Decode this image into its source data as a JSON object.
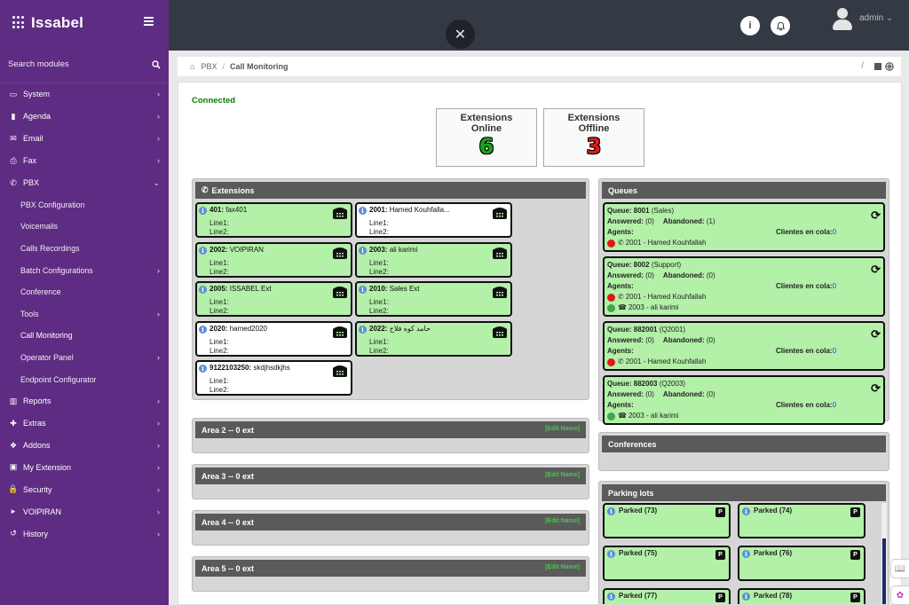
{
  "brand": {
    "name": "Issabel"
  },
  "sidebar": {
    "search_label": "Search modules",
    "items": [
      {
        "label": "System",
        "icon": "laptop-icon"
      },
      {
        "label": "Agenda",
        "icon": "book-icon"
      },
      {
        "label": "Email",
        "icon": "envelope-icon"
      },
      {
        "label": "Fax",
        "icon": "printer-icon"
      },
      {
        "label": "PBX",
        "icon": "phone-icon",
        "expanded": true
      }
    ],
    "pbx_sub": [
      {
        "label": "PBX Configuration",
        "chev": false
      },
      {
        "label": "Voicemails",
        "chev": false
      },
      {
        "label": "Calls Recordings",
        "chev": false
      },
      {
        "label": "Batch Configurations",
        "chev": true
      },
      {
        "label": "Conference",
        "chev": false
      },
      {
        "label": "Tools",
        "chev": true
      },
      {
        "label": "Call Monitoring",
        "chev": false,
        "active": true
      },
      {
        "label": "Operator Panel",
        "chev": true
      },
      {
        "label": "Endpoint Configurator",
        "chev": false
      }
    ],
    "items_after": [
      {
        "label": "Reports",
        "icon": "bar-chart-icon"
      },
      {
        "label": "Extras",
        "icon": "plus-icon"
      },
      {
        "label": "Addons",
        "icon": "cubes-icon"
      },
      {
        "label": "My Extension",
        "icon": "briefcase-icon"
      },
      {
        "label": "Security",
        "icon": "lock-icon"
      },
      {
        "label": "VOIPIRAN",
        "icon": "caret-right-icon"
      },
      {
        "label": "History",
        "icon": "history-icon"
      }
    ]
  },
  "topbar": {
    "user": "admin"
  },
  "breadcrumb": {
    "section": "PBX",
    "current": "Call Monitoring"
  },
  "status": "Connected",
  "stats": {
    "online_label_1": "Extensions",
    "online_label_2": "Online",
    "online_value": "6",
    "offline_label_1": "Extensions",
    "offline_label_2": "Offline",
    "offline_value": "3"
  },
  "extensions_panel": {
    "title": "Extensions",
    "line1": "Line1:",
    "line2": "Line2:",
    "cards": [
      {
        "num": "401:",
        "name": "fax401",
        "online": true
      },
      {
        "num": "2001:",
        "name": "Hamed Kouhfalla...",
        "online": false
      },
      {
        "num": "2002:",
        "name": "VOIPIRAN",
        "online": true
      },
      {
        "num": "2003:",
        "name": "ali karimi",
        "online": true
      },
      {
        "num": "2005:",
        "name": "ISSABEL Ext",
        "online": true
      },
      {
        "num": "2010:",
        "name": "Sales Ext",
        "online": true
      },
      {
        "num": "2020:",
        "name": "hamed2020",
        "online": false
      },
      {
        "num": "2022:",
        "name": "حامد کوه فلاح",
        "online": true
      },
      {
        "num": "9122103250:",
        "name": "skdjhsdkjhs",
        "online": false
      }
    ]
  },
  "areas": [
    {
      "title": "Area 2 -- 0 ext",
      "edit": "[Edit Name]"
    },
    {
      "title": "Area 3 -- 0 ext",
      "edit": "[Edit Name]"
    },
    {
      "title": "Area 4 -- 0 ext",
      "edit": "[Edit Name]"
    },
    {
      "title": "Area 5 -- 0 ext",
      "edit": "[Edit Name]"
    }
  ],
  "queues_panel": {
    "title": "Queues",
    "answered_label": "Answered:",
    "abandoned_label": "Abandoned:",
    "agents_label": "Agents:",
    "cola_label": "Clientes en cola:",
    "queues": [
      {
        "queue": "Queue: 8001",
        "name": "(Sales)",
        "answered": "(0)",
        "abandoned": "(1)",
        "cola": "0",
        "agents": [
          {
            "status": "red",
            "label": "2001 - Hamed Kouhfallah"
          }
        ]
      },
      {
        "queue": "Queue: 8002",
        "name": "(Support)",
        "answered": "(0)",
        "abandoned": "(0)",
        "cola": "0",
        "agents": [
          {
            "status": "red",
            "label": "2001 - Hamed Kouhfallah"
          },
          {
            "status": "green",
            "label": "2003 - ali karimi"
          }
        ]
      },
      {
        "queue": "Queue: 882001",
        "name": "(Q2001)",
        "answered": "(0)",
        "abandoned": "(0)",
        "cola": "0",
        "agents": [
          {
            "status": "red",
            "label": "2001 - Hamed Kouhfallah"
          }
        ]
      },
      {
        "queue": "Queue: 882003",
        "name": "(Q2003)",
        "answered": "(0)",
        "abandoned": "(0)",
        "cola": "0",
        "agents": [
          {
            "status": "green",
            "label": "2003 - ali karimi"
          }
        ]
      }
    ]
  },
  "conferences_panel": {
    "title": "Conferences"
  },
  "parking_panel": {
    "title": "Parking lots",
    "lots": [
      "Parked (73)",
      "Parked (74)",
      "Parked (75)",
      "Parked (76)",
      "Parked (77)",
      "Parked (78)"
    ],
    "badge": "P"
  }
}
